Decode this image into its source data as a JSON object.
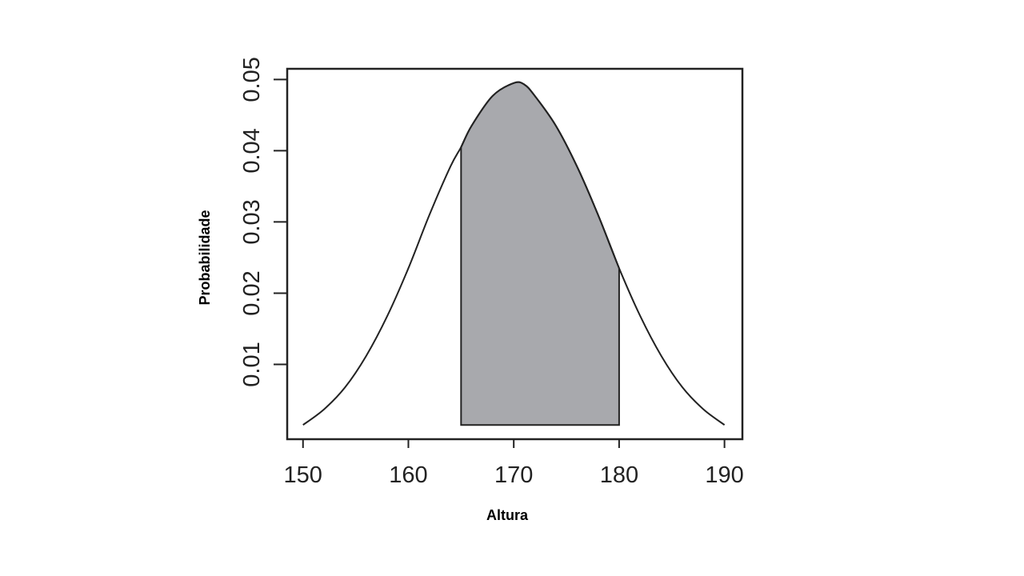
{
  "chart_data": {
    "type": "line",
    "title": "",
    "xlabel": "Altura",
    "ylabel": "Probabilidade",
    "xlim": [
      148.5,
      191.7
    ],
    "ylim": [
      -0.0005,
      0.0515
    ],
    "xticks": [
      150,
      160,
      170,
      180,
      190
    ],
    "xtick_labels": [
      "150",
      "160",
      "170",
      "180",
      "190"
    ],
    "yticks": [
      0.01,
      0.02,
      0.03,
      0.04,
      0.05
    ],
    "ytick_labels": [
      "0.01",
      "0.02",
      "0.03",
      "0.04",
      "0.05"
    ],
    "grid": false,
    "series": [
      {
        "x": [
          150,
          152,
          154,
          156,
          158,
          160,
          162,
          164,
          165,
          166,
          168,
          170,
          171,
          172,
          174,
          176,
          178,
          180,
          182,
          184,
          186,
          188,
          190
        ],
        "values": [
          0.0015,
          0.0037,
          0.0068,
          0.0112,
          0.0168,
          0.0235,
          0.031,
          0.0378,
          0.0405,
          0.0435,
          0.0477,
          0.0495,
          0.0493,
          0.0477,
          0.0435,
          0.0378,
          0.031,
          0.0235,
          0.0168,
          0.0112,
          0.0068,
          0.0037,
          0.0015
        ]
      }
    ],
    "shaded_region": {
      "x_from": 165,
      "x_to": 180,
      "baseline": 0.0015,
      "fill": "#a8a9ad"
    },
    "colors": {
      "curve": "#222222",
      "axes": "#222222",
      "fill": "#a8a9ad"
    }
  }
}
